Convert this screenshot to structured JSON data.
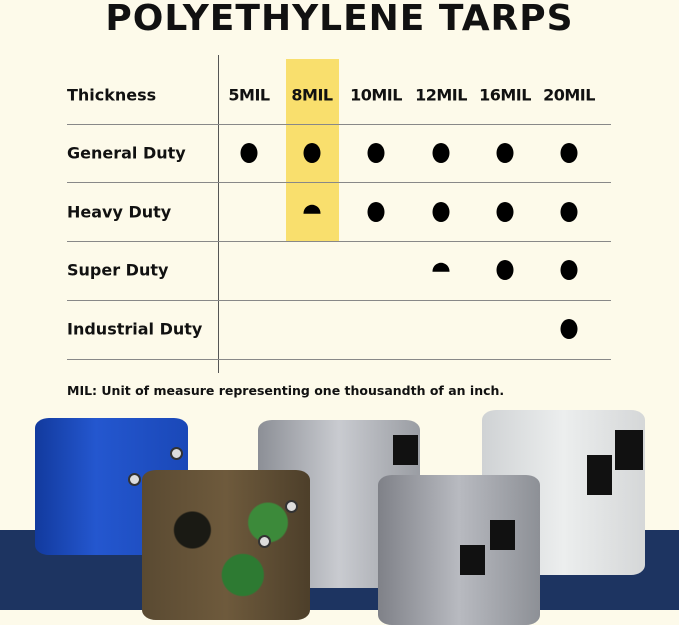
{
  "title": "POLYETHYLENE TARPS",
  "table": {
    "header_label": "Thickness",
    "columns": [
      "5MIL",
      "8MIL",
      "10MIL",
      "12MIL",
      "16MIL",
      "20MIL"
    ],
    "highlighted_column": "8MIL",
    "highlight_color": "#f9df6d",
    "rows": [
      {
        "label": "General Duty",
        "cells": [
          "full",
          "full",
          "full",
          "full",
          "full",
          "full"
        ]
      },
      {
        "label": "Heavy Duty",
        "cells": [
          "none",
          "half",
          "full",
          "full",
          "full",
          "full"
        ]
      },
      {
        "label": "Super Duty",
        "cells": [
          "none",
          "none",
          "none",
          "half",
          "full",
          "full"
        ]
      },
      {
        "label": "Industrial Duty",
        "cells": [
          "none",
          "none",
          "none",
          "none",
          "none",
          "full"
        ]
      }
    ]
  },
  "note": "MIL: Unit of measure representing one thousandth of an inch.",
  "product_image": {
    "tarps": [
      "blue",
      "camo",
      "silver",
      "silver-black",
      "white"
    ],
    "band_color": "#1d3461"
  }
}
